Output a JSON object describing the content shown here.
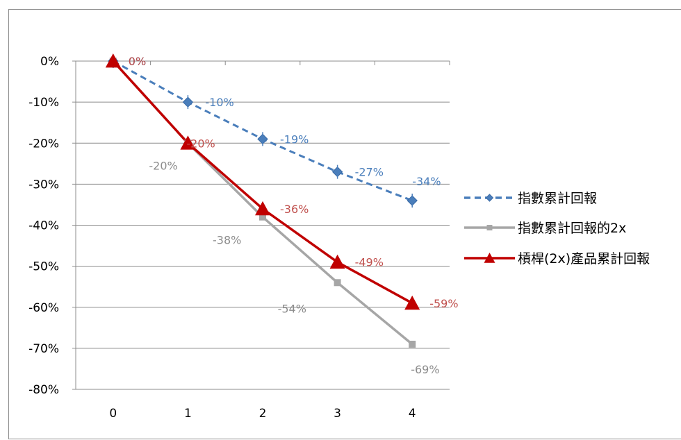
{
  "chart_data": {
    "type": "line",
    "categories": [
      "0",
      "1",
      "2",
      "3",
      "4"
    ],
    "ylim": [
      -80,
      0
    ],
    "yticks": [
      0,
      -10,
      -20,
      -30,
      -40,
      -50,
      -60,
      -70,
      -80
    ],
    "ytick_labels": [
      "0%",
      "-10%",
      "-20%",
      "-30%",
      "-40%",
      "-50%",
      "-60%",
      "-70%",
      "-80%"
    ],
    "grid": "horizontal",
    "legend_position": "right",
    "series": [
      {
        "name": "指數累計回報",
        "values": [
          0,
          -10,
          -19,
          -27,
          -34
        ],
        "labels": [
          "0%",
          "-10%",
          "-19%",
          "-27%",
          "-34%"
        ],
        "color": "#4a7ebb",
        "line_style": "dashed",
        "marker": "diamond"
      },
      {
        "name": "指數累計回報的2x",
        "values": [
          0,
          -20,
          -38,
          -54,
          -69
        ],
        "labels": [
          "0%",
          "-20%",
          "-38%",
          "-54%",
          "-69%"
        ],
        "color": "#a6a6a6",
        "line_style": "solid",
        "marker": "square"
      },
      {
        "name": "槓桿(2x)產品累計回報",
        "values": [
          0,
          -20,
          -36,
          -49,
          -59
        ],
        "labels": [
          "0%",
          "-20%",
          "-36%",
          "-49%",
          "-59%"
        ],
        "color": "#c00000",
        "line_style": "solid",
        "marker": "triangle"
      }
    ]
  }
}
